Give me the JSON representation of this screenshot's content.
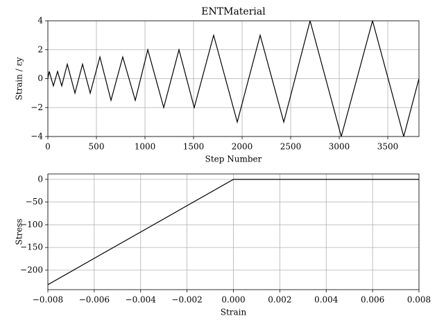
{
  "chart_data": [
    {
      "type": "line",
      "title": "ENTMaterial",
      "x_label": "Step Number",
      "y_label": "Strain / εy",
      "x": [
        0,
        14,
        57,
        100,
        143,
        200,
        279,
        357,
        436,
        536,
        650,
        771,
        900,
        1029,
        1193,
        1350,
        1507,
        1707,
        1950,
        2186,
        2429,
        2700,
        3021,
        3343,
        3664,
        3821
      ],
      "series": [
        {
          "name": "Strain",
          "color": "#000000",
          "values": [
            0,
            0.5,
            -0.5,
            0.5,
            -0.5,
            1,
            -1,
            1,
            -1,
            1.5,
            -1.5,
            1.5,
            -1.5,
            2,
            -2,
            2,
            -2,
            3,
            -3,
            3,
            -3,
            4,
            -4,
            4,
            -4,
            0
          ]
        }
      ],
      "xlim": [
        0,
        3821
      ],
      "ylim": [
        -4,
        4
      ],
      "xticks": [
        0,
        500,
        1000,
        1500,
        2000,
        2500,
        3000,
        3500
      ],
      "yticks": [
        {
          "value": -4,
          "label": "−4"
        },
        {
          "value": -2,
          "label": "−2"
        },
        0,
        2,
        4
      ],
      "grid": true
    },
    {
      "type": "line",
      "x_label": "Strain",
      "y_label": "Stress",
      "x": [
        -0.008,
        0,
        0.008
      ],
      "series": [
        {
          "name": "Stress",
          "color": "#000000",
          "values": [
            -232,
            0,
            0
          ]
        }
      ],
      "xlim": [
        -0.008,
        0.008
      ],
      "ylim": [
        -243,
        12
      ],
      "xticks": [
        {
          "value": -0.008,
          "label": "−0.008"
        },
        {
          "value": -0.006,
          "label": "−0.006"
        },
        {
          "value": -0.004,
          "label": "−0.004"
        },
        {
          "value": -0.002,
          "label": "−0.002"
        },
        {
          "value": 0,
          "label": "0.000"
        },
        {
          "value": 0.002,
          "label": "0.002"
        },
        {
          "value": 0.004,
          "label": "0.004"
        },
        {
          "value": 0.006,
          "label": "0.006"
        },
        {
          "value": 0.008,
          "label": "0.008"
        }
      ],
      "yticks": [
        {
          "value": -200,
          "label": "−200"
        },
        {
          "value": -150,
          "label": "−150"
        },
        {
          "value": -100,
          "label": "−100"
        },
        {
          "value": -50,
          "label": "−50"
        },
        0
      ],
      "grid": true
    }
  ]
}
